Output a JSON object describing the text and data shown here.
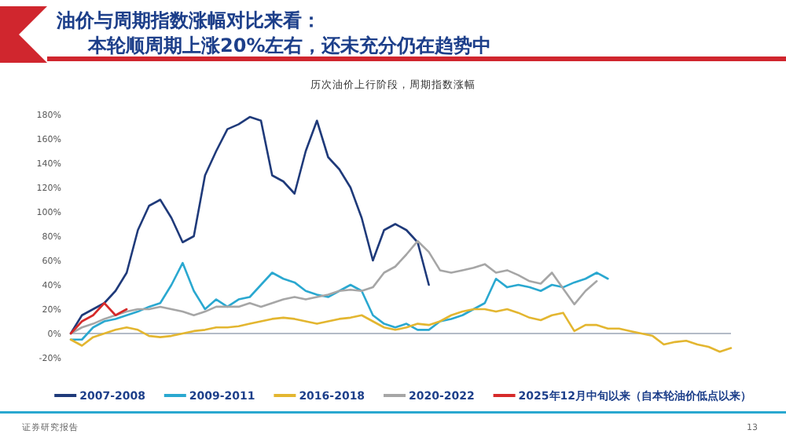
{
  "chart_data": {
    "type": "line",
    "title": "油价与周期指数涨幅对比来看：",
    "subtitle": "本轮顺周期上涨20%左右，还未充分仍在趋势中",
    "xlabel": "历次油价上行阶段，周期指数涨幅",
    "categories": [
      null,
      null,
      null,
      null,
      null,
      null,
      null,
      null,
      null,
      null,
      null,
      null,
      null,
      null,
      null,
      null,
      null,
      null,
      null,
      null,
      null,
      null,
      null,
      null,
      null,
      null,
      null,
      null,
      null,
      null,
      null,
      null,
      null,
      null,
      null,
      null,
      null,
      null,
      null,
      null,
      null,
      null,
      null,
      null,
      null,
      null,
      null,
      null,
      null,
      null,
      null,
      null,
      null,
      null,
      null,
      null,
      null,
      null,
      null,
      null
    ],
    "series": [
      {
        "name": "2007-2008",
        "color": "#1f3a7a",
        "values": [
          0,
          15,
          20,
          25,
          35,
          50,
          85,
          105,
          110,
          95,
          75,
          80,
          130,
          150,
          168,
          172,
          178,
          175,
          130,
          125,
          115,
          150,
          175,
          145,
          135,
          120,
          95,
          60,
          85,
          90,
          85,
          75,
          40,
          null,
          null,
          null,
          null,
          null,
          null,
          null,
          null,
          null,
          null,
          null,
          null,
          null,
          null,
          null,
          null,
          null,
          null,
          null,
          null,
          null,
          null,
          null,
          null,
          null,
          null,
          null
        ]
      },
      {
        "name": "2009-2011",
        "color": "#2aa8d0",
        "values": [
          -5,
          -5,
          5,
          10,
          12,
          15,
          18,
          22,
          25,
          40,
          58,
          35,
          20,
          28,
          22,
          28,
          30,
          40,
          50,
          45,
          42,
          35,
          32,
          30,
          35,
          40,
          35,
          15,
          8,
          5,
          8,
          3,
          3,
          10,
          12,
          15,
          20,
          25,
          45,
          38,
          40,
          38,
          35,
          40,
          38,
          42,
          45,
          50,
          45,
          null,
          null,
          null,
          null,
          null,
          null,
          null,
          null,
          null,
          null,
          null
        ]
      },
      {
        "name": "2016-2018",
        "color": "#e3b630",
        "values": [
          -5,
          -10,
          -3,
          0,
          3,
          5,
          3,
          -2,
          -3,
          -2,
          0,
          2,
          3,
          5,
          5,
          6,
          8,
          10,
          12,
          13,
          12,
          10,
          8,
          10,
          12,
          13,
          15,
          10,
          5,
          3,
          5,
          8,
          7,
          10,
          15,
          18,
          20,
          20,
          18,
          20,
          17,
          13,
          11,
          15,
          17,
          2,
          7,
          7,
          4,
          4,
          2,
          0,
          -2,
          -9,
          -7,
          -6,
          -9,
          -11,
          -15,
          -12
        ]
      },
      {
        "name": "2020-2022",
        "color": "#a6a6a6",
        "values": [
          0,
          5,
          8,
          12,
          15,
          18,
          20,
          20,
          22,
          20,
          18,
          15,
          18,
          22,
          22,
          22,
          25,
          22,
          25,
          28,
          30,
          28,
          30,
          32,
          35,
          36,
          35,
          38,
          50,
          55,
          65,
          76,
          67,
          52,
          50,
          52,
          54,
          57,
          50,
          52,
          48,
          43,
          41,
          50,
          37,
          24,
          35,
          43,
          null,
          null,
          null,
          null,
          null,
          null,
          null,
          null,
          null,
          null,
          null,
          null
        ]
      },
      {
        "name": "2025年12月中旬以来（自本轮油价低点以来）",
        "color": "#d62a2a",
        "values": [
          0,
          10,
          15,
          25,
          15,
          20,
          null,
          null,
          null,
          null,
          null,
          null,
          null,
          null,
          null,
          null,
          null,
          null,
          null,
          null,
          null,
          null,
          null,
          null,
          null,
          null,
          null,
          null,
          null,
          null,
          null,
          null,
          null,
          null,
          null,
          null,
          null,
          null,
          null,
          null,
          null,
          null,
          null,
          null,
          null,
          null,
          null,
          null,
          null,
          null,
          null,
          null,
          null,
          null,
          null,
          null,
          null,
          null,
          null,
          null
        ]
      }
    ],
    "ylim": [
      -20,
      180
    ],
    "yticks": [
      {
        "value": -20,
        "label": "-20%"
      },
      {
        "value": 0,
        "label": "0%"
      },
      {
        "value": 20,
        "label": "20%"
      },
      {
        "value": 40,
        "label": "40%"
      },
      {
        "value": 60,
        "label": "60%"
      },
      {
        "value": 80,
        "label": "80%"
      },
      {
        "value": 100,
        "label": "100%"
      },
      {
        "value": 120,
        "label": "120%"
      },
      {
        "value": 140,
        "label": "140%"
      },
      {
        "value": 160,
        "label": "160%"
      },
      {
        "value": 180,
        "label": "180%"
      }
    ],
    "legend": "bottom",
    "tick_labels": "y",
    "annotations": [
      "证券研究报告",
      "13"
    ]
  }
}
